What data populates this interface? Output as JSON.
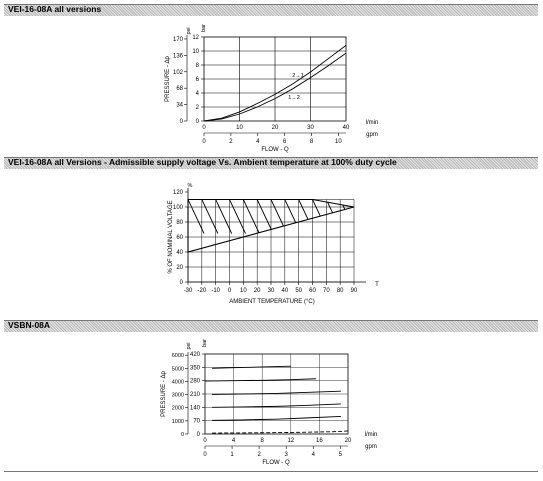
{
  "sections": [
    {
      "title": "VEI-16-08A all versions"
    },
    {
      "title": "VEI-16-08A all Versions - Admissible supply voltage Vs. Ambient temperature at 100% duty cycle"
    },
    {
      "title": "VSBN-08A"
    }
  ],
  "chart_data": [
    {
      "type": "line",
      "ylabel": "PRESSURE - Δp",
      "xlabel": "FLOW - Q",
      "y_unit_left": "psi",
      "y_unit_right": "bar",
      "x_unit_top": "l/min",
      "x_unit_bottom": "gpm",
      "x_ticks": [
        "0",
        "10",
        "20",
        "30",
        "40"
      ],
      "x2_ticks": [
        "0",
        "2",
        "4",
        "6",
        "8",
        "10"
      ],
      "y_ticks_bar": [
        "0",
        "2",
        "4",
        "6",
        "8",
        "10",
        "12"
      ],
      "y_ticks_psi": [
        "0",
        "34",
        "68",
        "102",
        "136",
        "170"
      ],
      "xlim": [
        0,
        40
      ],
      "ylim": [
        0,
        12
      ],
      "series": [
        {
          "name": "2→1",
          "x": [
            0,
            5,
            10,
            15,
            20,
            25,
            30,
            35,
            40
          ],
          "y": [
            0,
            0.4,
            1.3,
            2.5,
            3.8,
            5.3,
            7.0,
            8.9,
            10.8
          ]
        },
        {
          "name": "1→2",
          "x": [
            0,
            5,
            10,
            15,
            20,
            25,
            30,
            35,
            40
          ],
          "y": [
            0,
            0.3,
            1.0,
            2.0,
            3.2,
            4.6,
            6.2,
            7.9,
            9.7
          ]
        }
      ]
    },
    {
      "type": "area",
      "ylabel": "% OF NOMINAL VOLTAGE",
      "xlabel": "AMBIENT TEMPERATURE (°C)",
      "y_unit": "%",
      "x_unit": "T",
      "x_ticks": [
        "-30",
        "-20",
        "-10",
        "0",
        "10",
        "20",
        "30",
        "40",
        "50",
        "60",
        "70",
        "80",
        "90"
      ],
      "y_ticks": [
        "0",
        "20",
        "40",
        "60",
        "80",
        "100",
        "120"
      ],
      "xlim": [
        -30,
        90
      ],
      "ylim": [
        0,
        120
      ],
      "upper_boundary": {
        "x": [
          -30,
          60,
          90
        ],
        "y": [
          110,
          110,
          100
        ]
      },
      "lower_boundary": {
        "x": [
          -30,
          90
        ],
        "y": [
          40,
          100
        ]
      }
    },
    {
      "type": "line",
      "ylabel": "PRESSURE - Δp",
      "xlabel": "FLOW - Q",
      "y_unit_left": "psi",
      "y_unit_right": "bar",
      "x_unit_top": "l/min",
      "x_unit_bottom": "gpm",
      "x_ticks": [
        "0",
        "4",
        "8",
        "12",
        "16",
        "20"
      ],
      "x2_ticks": [
        "0",
        "1",
        "2",
        "3",
        "4",
        "5"
      ],
      "y_ticks_bar": [
        "0",
        "70",
        "140",
        "210",
        "280",
        "350",
        "420"
      ],
      "y_ticks_psi": [
        "0",
        "1000",
        "2000",
        "3000",
        "4000",
        "5000",
        "6000"
      ],
      "xlim": [
        0,
        20
      ],
      "ylim": [
        0,
        420
      ],
      "series": [
        {
          "x": [
            1,
            4,
            8,
            12
          ],
          "y": [
            345,
            348,
            352,
            356
          ]
        },
        {
          "x": [
            0,
            4,
            8,
            12,
            15.5
          ],
          "y": [
            278,
            280,
            282,
            285,
            290
          ]
        },
        {
          "x": [
            1,
            5,
            10,
            14,
            19
          ],
          "y": [
            208,
            210,
            213,
            218,
            225
          ]
        },
        {
          "x": [
            1,
            5,
            10,
            14,
            19
          ],
          "y": [
            140,
            142,
            145,
            150,
            158
          ]
        },
        {
          "x": [
            1,
            5,
            10,
            14,
            19
          ],
          "y": [
            72,
            74,
            78,
            84,
            92
          ]
        },
        {
          "x": [
            1,
            6,
            12,
            18,
            21
          ],
          "y": [
            5,
            6,
            8,
            12,
            16
          ],
          "dashed": true
        }
      ]
    }
  ]
}
